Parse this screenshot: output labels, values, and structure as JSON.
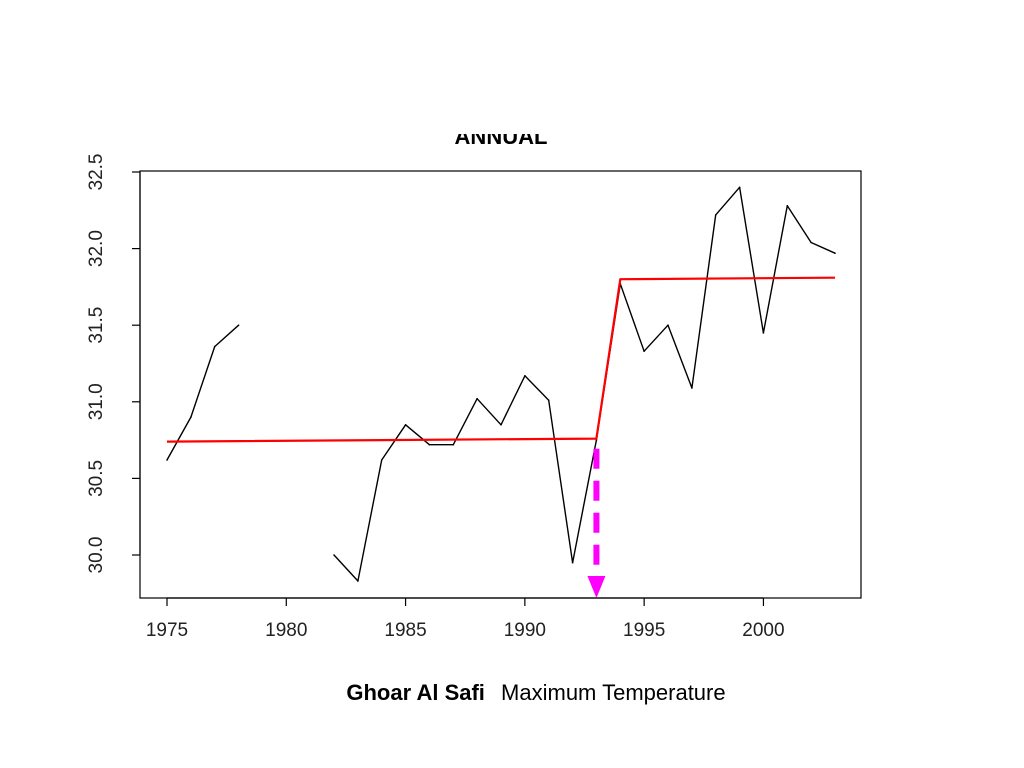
{
  "chart_data": {
    "type": "line",
    "title": "ANNUAL",
    "xlim": [
      1975,
      2003
    ],
    "ylim": [
      29.75,
      32.5
    ],
    "x_ticks": [
      1975,
      1980,
      1985,
      1990,
      1995,
      2000
    ],
    "y_ticks": [
      "30.0",
      "30.5",
      "31.0",
      "31.5",
      "32.0",
      "32.5"
    ],
    "grid": false,
    "series": [
      {
        "color": "#000000",
        "segments": [
          [
            [
              1975,
              30.62
            ],
            [
              1976,
              30.9
            ],
            [
              1977,
              31.36
            ],
            [
              1978,
              31.5
            ]
          ],
          [
            [
              1982,
              30.0
            ],
            [
              1983,
              29.83
            ],
            [
              1984,
              30.62
            ],
            [
              1985,
              30.85
            ],
            [
              1986,
              30.72
            ],
            [
              1987,
              30.72
            ],
            [
              1988,
              31.02
            ],
            [
              1989,
              30.85
            ],
            [
              1990,
              31.17
            ],
            [
              1991,
              31.01
            ],
            [
              1992,
              29.95
            ],
            [
              1993,
              30.75
            ],
            [
              1994,
              31.77
            ],
            [
              1995,
              31.33
            ],
            [
              1996,
              31.5
            ],
            [
              1997,
              31.09
            ],
            [
              1998,
              32.22
            ],
            [
              1999,
              32.4
            ],
            [
              2000,
              31.45
            ],
            [
              2001,
              32.28
            ],
            [
              2002,
              32.04
            ],
            [
              2003,
              31.97
            ]
          ]
        ]
      }
    ],
    "trend": {
      "color": "#ff0000",
      "points": [
        [
          1975,
          30.74
        ],
        [
          1993,
          30.76
        ],
        [
          1994,
          31.8
        ],
        [
          2003,
          31.81
        ]
      ]
    },
    "change_point": {
      "year": 1993,
      "color": "#ff00ff",
      "from_y": 30.72,
      "to_y": 29.75
    }
  },
  "caption": {
    "place": "Ghoar Al Safi",
    "text": "Maximum Temperature"
  }
}
